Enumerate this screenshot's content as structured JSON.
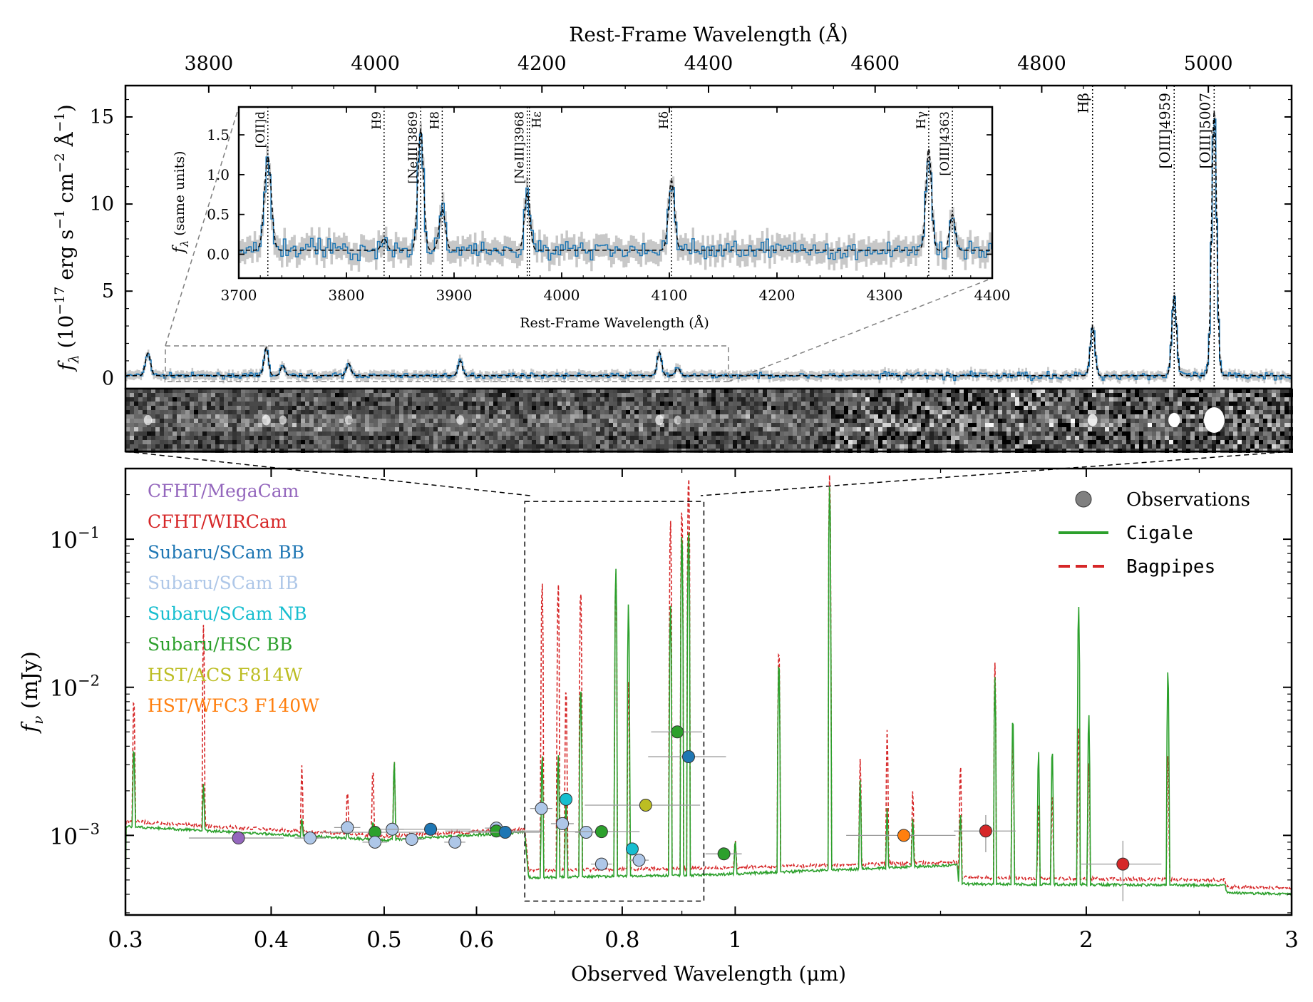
{
  "chart_data": [
    {
      "id": "spectrum",
      "type": "line",
      "title": "",
      "top_xlabel": "Rest-Frame Wavelength (Å)",
      "ylabel_parts": [
        "f",
        "λ",
        " (10",
        "−17",
        " erg s",
        "−1",
        " cm",
        "−2",
        " Å",
        "−1",
        ")"
      ],
      "xlim": [
        3700,
        5100
      ],
      "ylim": [
        -0.6,
        16.8
      ],
      "x_ticks": [
        3800,
        4000,
        4200,
        4400,
        4600,
        4800,
        5000
      ],
      "y_ticks": [
        0,
        5,
        10,
        15
      ],
      "line_centers": [
        3727,
        3869,
        3889,
        3968,
        4102,
        4341,
        4363,
        4861,
        4959,
        5007
      ],
      "line_peaks": [
        1.3,
        1.6,
        0.6,
        0.7,
        0.85,
        1.35,
        0.45,
        2.8,
        4.6,
        15.2
      ],
      "line_widths": [
        3.0,
        2.6,
        2.6,
        2.6,
        2.6,
        2.6,
        2.6,
        2.8,
        2.8,
        3.0
      ],
      "marked_lines": [
        {
          "x": 4861,
          "label": "Hβ"
        },
        {
          "x": 4959,
          "label": "[OIII]4959"
        },
        {
          "x": 5007,
          "label": "[OIII]5007"
        }
      ],
      "zoom_region": [
        3700,
        4400
      ],
      "colors": {
        "data": "#1f77b4",
        "error": "#c8c8c8",
        "model": "#000000"
      }
    },
    {
      "id": "inset",
      "type": "line",
      "xlabel": "Rest-Frame Wavelength (Å)",
      "ylabel_main": "f",
      "ylabel_sub": "λ",
      "ylabel_rest": " (same units)",
      "xlim": [
        3700,
        4400
      ],
      "ylim": [
        -0.3,
        1.85
      ],
      "x_ticks": [
        3700,
        3800,
        3900,
        4000,
        4100,
        4200,
        4300,
        4400
      ],
      "y_ticks": [
        0.0,
        0.5,
        1.0,
        1.5
      ],
      "y_tick_labels": [
        "0.0",
        "0.5",
        "1.0",
        "1.5"
      ],
      "marked_lines": [
        {
          "x": 3727,
          "label": "[OII]d"
        },
        {
          "x": 3835,
          "label": "H9"
        },
        {
          "x": 3869,
          "label": "[NeIII]3869"
        },
        {
          "x": 3889,
          "label": "H8"
        },
        {
          "x": 3968,
          "label": "[NeIII]3968"
        },
        {
          "x": 3970,
          "label": "Hε"
        },
        {
          "x": 4102,
          "label": "Hδ"
        },
        {
          "x": 4341,
          "label": "Hγ"
        },
        {
          "x": 4363,
          "label": "[OIII]4363"
        }
      ]
    },
    {
      "id": "sed",
      "type": "scatter",
      "xlabel": "Observed Wavelength (μm)",
      "ylabel_main": "f",
      "ylabel_sub": "ν",
      "ylabel_rest": " (mJy)",
      "x_scale": "log",
      "y_scale": "log",
      "xlim": [
        0.3,
        3.0
      ],
      "ylim": [
        0.00029,
        0.3
      ],
      "x_ticks": [
        0.3,
        0.4,
        0.5,
        0.6,
        0.8,
        1,
        2,
        3
      ],
      "x_tick_labels": [
        "0.3",
        "0.4",
        "0.5",
        "0.6",
        "0.8",
        "1",
        "2",
        "3"
      ],
      "y_ticks": [
        0.001,
        0.01,
        0.1
      ],
      "y_tick_labels": [
        "10",
        "10",
        "10"
      ],
      "y_tick_exponents": [
        "−3",
        "−2",
        "−1"
      ],
      "zoom_box": {
        "x": [
          0.66,
          0.94
        ],
        "y": [
          0.00036,
          0.18
        ]
      },
      "instruments": [
        {
          "name": "CFHT/MegaCam",
          "color": "#9467bd"
        },
        {
          "name": "CFHT/WIRCam",
          "color": "#d62728"
        },
        {
          "name": "Subaru/SCam BB",
          "color": "#1f77b4"
        },
        {
          "name": "Subaru/SCam IB",
          "color": "#aec7e8"
        },
        {
          "name": "Subaru/SCam NB",
          "color": "#17becf"
        },
        {
          "name": "Subaru/HSC BB",
          "color": "#2ca02c"
        },
        {
          "name": "HST/ACS F814W",
          "color": "#bcbd22"
        },
        {
          "name": "HST/WFC3 F140W",
          "color": "#ff7f0e"
        }
      ],
      "legend": [
        {
          "label": "Observations",
          "kind": "marker",
          "color": "#808080"
        },
        {
          "label": "Cigale",
          "kind": "solid",
          "color": "#2ca02c"
        },
        {
          "label": "Bagpipes",
          "kind": "dashed",
          "color": "#d62728"
        }
      ],
      "legend_position": "top-right",
      "observations": [
        {
          "x": 0.375,
          "y": 0.00096,
          "xerr": 0.035,
          "yerr": 4e-05,
          "inst": 0
        },
        {
          "x": 0.432,
          "y": 0.00096,
          "xerr": 0.013,
          "yerr": 4e-05,
          "inst": 3
        },
        {
          "x": 0.465,
          "y": 0.00113,
          "xerr": 0.012,
          "yerr": 4e-05,
          "inst": 3
        },
        {
          "x": 0.491,
          "y": 0.00105,
          "xerr": 0.05,
          "yerr": 4e-05,
          "inst": 5
        },
        {
          "x": 0.491,
          "y": 0.0009,
          "xerr": 0.012,
          "yerr": 6e-05,
          "inst": 3
        },
        {
          "x": 0.508,
          "y": 0.0011,
          "xerr": 0.012,
          "yerr": 4e-05,
          "inst": 3
        },
        {
          "x": 0.528,
          "y": 0.00094,
          "xerr": 0.012,
          "yerr": 4e-05,
          "inst": 3
        },
        {
          "x": 0.548,
          "y": 0.0011,
          "xerr": 0.045,
          "yerr": 4e-05,
          "inst": 2
        },
        {
          "x": 0.575,
          "y": 0.0009,
          "xerr": 0.012,
          "yerr": 6e-05,
          "inst": 3
        },
        {
          "x": 0.624,
          "y": 0.00112,
          "xerr": 0.014,
          "yerr": 4e-05,
          "inst": 3
        },
        {
          "x": 0.624,
          "y": 0.00107,
          "xerr": 0.06,
          "yerr": 4e-05,
          "inst": 5
        },
        {
          "x": 0.635,
          "y": 0.00105,
          "xerr": 0.045,
          "yerr": 4e-05,
          "inst": 2
        },
        {
          "x": 0.682,
          "y": 0.00152,
          "xerr": 0.015,
          "yerr": 5e-05,
          "inst": 3
        },
        {
          "x": 0.711,
          "y": 0.0012,
          "xerr": 0.016,
          "yerr": 5e-05,
          "inst": 3
        },
        {
          "x": 0.716,
          "y": 0.00175,
          "xerr": 0.006,
          "yerr": 5e-05,
          "inst": 4
        },
        {
          "x": 0.745,
          "y": 0.00105,
          "xerr": 0.016,
          "yerr": 5e-05,
          "inst": 3
        },
        {
          "x": 0.768,
          "y": 0.00106,
          "xerr": 0.06,
          "yerr": 4e-05,
          "inst": 5
        },
        {
          "x": 0.768,
          "y": 0.00064,
          "xerr": 0.016,
          "yerr": 4e-05,
          "inst": 3
        },
        {
          "x": 0.816,
          "y": 0.00081,
          "xerr": 0.006,
          "yerr": 4e-05,
          "inst": 4
        },
        {
          "x": 0.827,
          "y": 0.00068,
          "xerr": 0.016,
          "yerr": 4e-05,
          "inst": 3
        },
        {
          "x": 0.838,
          "y": 0.0016,
          "xerr": 0.095,
          "yerr": 5e-05,
          "inst": 6
        },
        {
          "x": 0.892,
          "y": 0.005,
          "xerr": 0.045,
          "yerr": 0.0002,
          "inst": 5
        },
        {
          "x": 0.912,
          "y": 0.0034,
          "xerr": 0.07,
          "yerr": 0.0002,
          "inst": 2
        },
        {
          "x": 0.978,
          "y": 0.00075,
          "xerr": 0.035,
          "yerr": 4e-05,
          "inst": 5
        },
        {
          "x": 1.395,
          "y": 0.001,
          "xerr": 0.15,
          "yerr": 5e-05,
          "inst": 7
        },
        {
          "x": 1.64,
          "y": 0.00107,
          "xerr": 0.1,
          "yerr": 0.0003,
          "inst": 1
        },
        {
          "x": 2.15,
          "y": 0.00064,
          "xerr": 0.17,
          "yerr": 0.00028,
          "inst": 1
        }
      ],
      "emission_lines_um": [
        0.305,
        0.35,
        0.425,
        0.465,
        0.489,
        0.51,
        0.683,
        0.705,
        0.716,
        0.737,
        0.79,
        0.81,
        0.88,
        0.9,
        0.912,
        1.0,
        1.09,
        1.205,
        1.28,
        1.35,
        1.42,
        1.56,
        1.67,
        1.73,
        1.82,
        1.87,
        1.97,
        2.01,
        2.35
      ],
      "line_heights_cigale": [
        0.0045,
        0.0023,
        0.0013,
        0.0011,
        0.0013,
        0.0035,
        0.004,
        0.004,
        0.002,
        0.012,
        0.07,
        0.04,
        0.04,
        0.13,
        0.14,
        0.001,
        0.018,
        0.25,
        0.0025,
        0.0016,
        0.0014,
        0.0016,
        0.012,
        0.0075,
        0.0042,
        0.0045,
        0.04,
        0.0075,
        0.015
      ],
      "line_heights_bagpipes": [
        0.01,
        0.028,
        0.003,
        0.0022,
        0.0032,
        0.0035,
        0.06,
        0.058,
        0.012,
        0.055,
        0.065,
        0.012,
        0.15,
        0.19,
        0.32,
        0.001,
        0.022,
        0.3,
        0.0035,
        0.0055,
        0.0022,
        0.0035,
        0.015,
        0.0055,
        0.0018,
        0.0022,
        0.006,
        0.0035,
        0.004
      ],
      "continuum_cigale": [
        [
          0.3,
          0.00115
        ],
        [
          0.5,
          0.00093
        ],
        [
          0.66,
          0.00105
        ],
        [
          0.665,
          0.00052
        ],
        [
          0.94,
          0.00054
        ],
        [
          1.55,
          0.00063
        ],
        [
          1.555,
          0.00047
        ],
        [
          2.63,
          0.00046
        ],
        [
          2.64,
          0.00041
        ],
        [
          3.0,
          0.0004
        ]
      ],
      "continuum_bagpipes": [
        [
          0.3,
          0.00125
        ],
        [
          0.5,
          0.00099
        ],
        [
          0.66,
          0.0011
        ],
        [
          0.665,
          0.00058
        ],
        [
          0.94,
          0.0006
        ],
        [
          1.55,
          0.00066
        ],
        [
          1.555,
          0.00052
        ],
        [
          2.63,
          0.0005
        ],
        [
          2.64,
          0.00045
        ],
        [
          3.0,
          0.00044
        ]
      ]
    }
  ]
}
